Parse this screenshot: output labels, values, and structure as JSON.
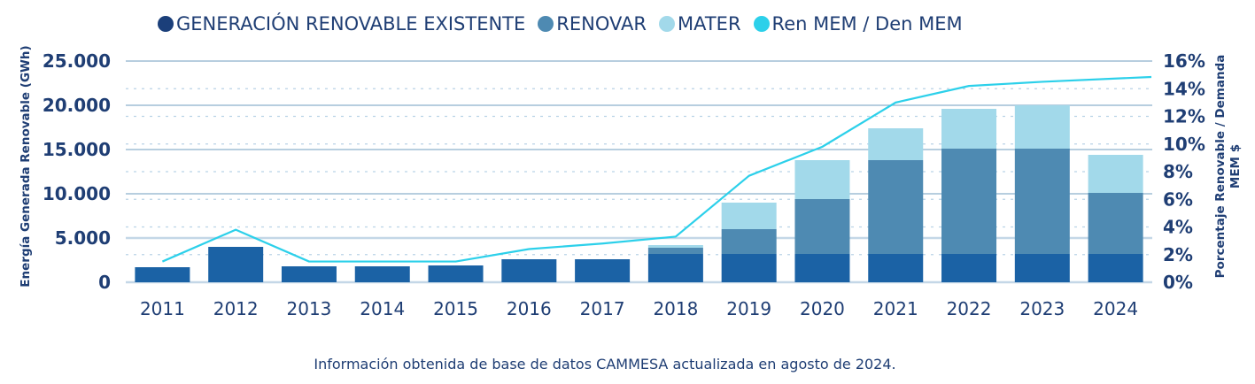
{
  "chart_data": {
    "type": "bar",
    "stacked": true,
    "categories": [
      "2011",
      "2012",
      "2013",
      "2014",
      "2015",
      "2016",
      "2017",
      "2018",
      "2019",
      "2020",
      "2021",
      "2022",
      "2023",
      "2024"
    ],
    "series": [
      {
        "name": "GENERACIÓN RENOVABLE EXISTENTE",
        "type": "bar",
        "axis": "left",
        "color": "#1b62a5",
        "legend_color": "#1b3f7a",
        "values": [
          1700,
          4000,
          1800,
          1800,
          1900,
          2600,
          2600,
          3200,
          3200,
          3200,
          3200,
          3200,
          3200,
          3200
        ]
      },
      {
        "name": "RENOVAR",
        "type": "bar",
        "axis": "left",
        "color": "#4e8ab2",
        "legend_color": "#4e8ab2",
        "values": [
          0,
          0,
          0,
          0,
          0,
          0,
          0,
          700,
          2800,
          6200,
          10600,
          11900,
          11900,
          6900
        ]
      },
      {
        "name": "MATER",
        "type": "bar",
        "axis": "left",
        "color": "#a2d9ea",
        "legend_color": "#a2d9ea",
        "values": [
          0,
          0,
          0,
          0,
          0,
          0,
          0,
          300,
          3000,
          4400,
          3600,
          4500,
          4900,
          4300
        ]
      },
      {
        "name": "Ren MEM / Den MEM",
        "type": "line",
        "axis": "right",
        "color": "#2cd0ea",
        "legend_color": "#2cd0ea",
        "values": [
          1.5,
          3.8,
          1.5,
          1.5,
          1.5,
          2.4,
          2.8,
          3.3,
          7.7,
          9.8,
          13.0,
          14.2,
          14.5,
          14.85
        ]
      }
    ],
    "left_axis": {
      "title": "Energía Generada Renovable (GWh)",
      "ylim": [
        0,
        25000
      ],
      "ticks": [
        0,
        5000,
        10000,
        15000,
        20000,
        25000
      ],
      "tick_labels": [
        "0",
        "5.000",
        "10.000",
        "15.000",
        "20.000",
        "25.000"
      ]
    },
    "right_axis": {
      "title_line1": "Porcentaje Renovable / Demanda",
      "title_line2": "MEM $",
      "ylim": [
        0,
        16
      ],
      "ticks": [
        0,
        2,
        4,
        6,
        8,
        10,
        12,
        14,
        16
      ],
      "tick_labels": [
        "0%",
        "2%",
        "4%",
        "6%",
        "8%",
        "10%",
        "12%",
        "14%",
        "16%"
      ]
    },
    "grid": true,
    "legend_position": "top",
    "title": "",
    "xlabel": ""
  },
  "legend": [
    {
      "label": "GENERACIÓN RENOVABLE EXISTENTE",
      "color": "#1b3f7a"
    },
    {
      "label": "RENOVAR",
      "color": "#4e8ab2"
    },
    {
      "label": "MATER",
      "color": "#a2d9ea"
    },
    {
      "label": "Ren MEM / Den MEM",
      "color": "#2cd0ea"
    }
  ],
  "footnote": "Información obtenida de base de datos CAMMESA actualizada en agosto de 2024."
}
